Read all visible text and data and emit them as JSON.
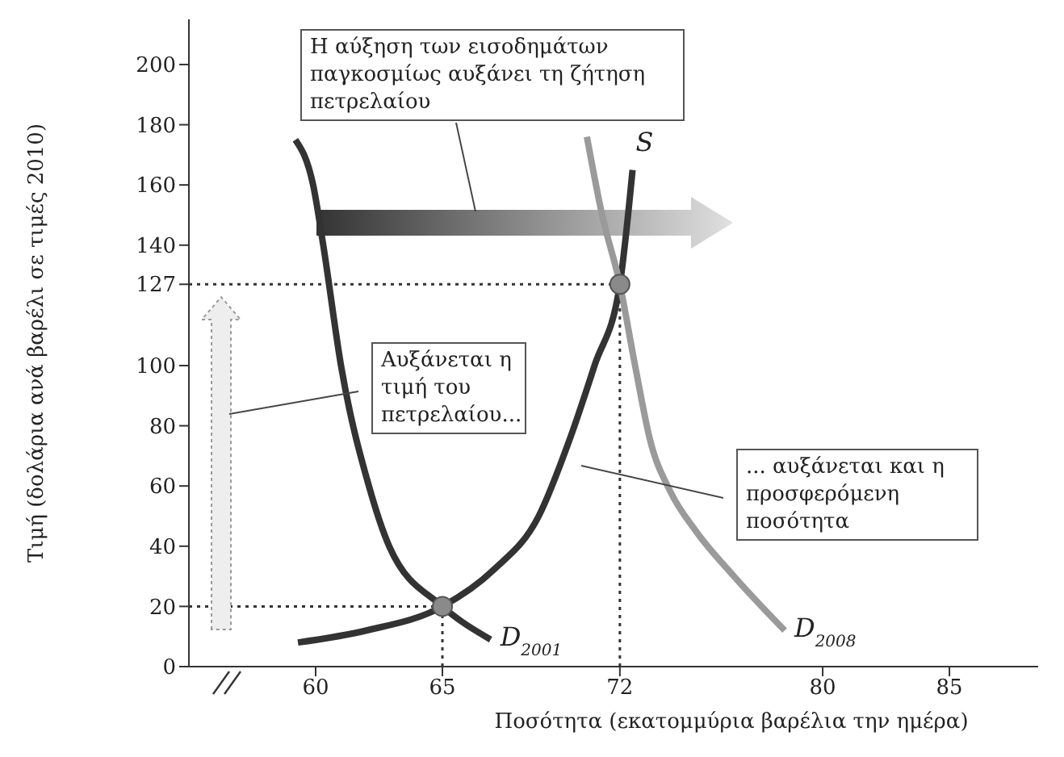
{
  "chart_data": {
    "type": "line",
    "xlabel": "Ποσότητα (εκατομμύρια βαρέλια την ημέρα)",
    "ylabel": "Τιμή (δολάρια ανά βαρέλι σε τιμές 2010)",
    "xlim": [
      55,
      88.5
    ],
    "xticks": [
      60,
      65,
      72,
      80,
      85
    ],
    "ylim": [
      0,
      215
    ],
    "yticks": [
      0,
      20,
      40,
      60,
      80,
      100,
      127,
      140,
      160,
      180,
      200
    ],
    "grid": false,
    "legend": false,
    "marker": "none",
    "line_style": "solid",
    "series": [
      {
        "name": "S",
        "color": "#333333",
        "x": [
          59.3,
          62,
          65,
          67,
          68.8,
          70,
          71,
          72,
          72.5
        ],
        "values": [
          8,
          12,
          20,
          32,
          50,
          75,
          100,
          127,
          165
        ]
      },
      {
        "name": "D$_{2001}$",
        "color": "#333333",
        "x": [
          59.2,
          59.9,
          60.3,
          61,
          62.1,
          62.9,
          65,
          66.9
        ],
        "values": [
          175,
          160,
          140,
          100,
          60,
          40,
          20,
          9
        ]
      },
      {
        "name": "D$_{2008}$",
        "color": "#9a9a9a",
        "x": [
          70.7,
          71.3,
          72,
          72.6,
          73.2,
          74,
          75,
          76.5,
          78.5
        ],
        "values": [
          176,
          150,
          127,
          100,
          75,
          58,
          45,
          30,
          12
        ]
      },
      {
        "type": "scatter",
        "color": "#8a8a8a",
        "marker": "circle",
        "x": [
          65,
          72
        ],
        "values": [
          20,
          127
        ]
      }
    ],
    "ref_lines": [
      {
        "axis": "x",
        "value": 65,
        "line_style": "dotted",
        "color": "#333333"
      },
      {
        "axis": "x",
        "value": 72,
        "line_style": "dotted",
        "color": "#333333"
      },
      {
        "axis": "y",
        "value": 20,
        "line_style": "dotted",
        "color": "#333333"
      },
      {
        "axis": "y",
        "value": 127,
        "line_style": "dotted",
        "color": "#333333"
      }
    ],
    "annotations": [
      "Η αύξηση των εισοδημάτων παγκοσμίως αυξάνει τη ζήτηση πετρελαίου",
      "Αυξάνεται η τιμή του πετρελαίου...",
      "... αυξάνεται και η προσφερόμενη ποσότητα"
    ]
  }
}
